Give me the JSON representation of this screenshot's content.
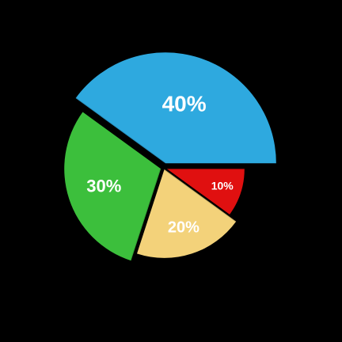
{
  "chart_data": {
    "type": "pie",
    "slices": [
      {
        "label": "40%",
        "value": 40,
        "color": "#2ea9df"
      },
      {
        "label": "10%",
        "value": 10,
        "color": "#e01010"
      },
      {
        "label": "20%",
        "value": 20,
        "color": "#f3d27a"
      },
      {
        "label": "30%",
        "value": 30,
        "color": "#3cbf3c"
      }
    ],
    "legend": "none",
    "style": "exploded slices, white percent labels"
  }
}
